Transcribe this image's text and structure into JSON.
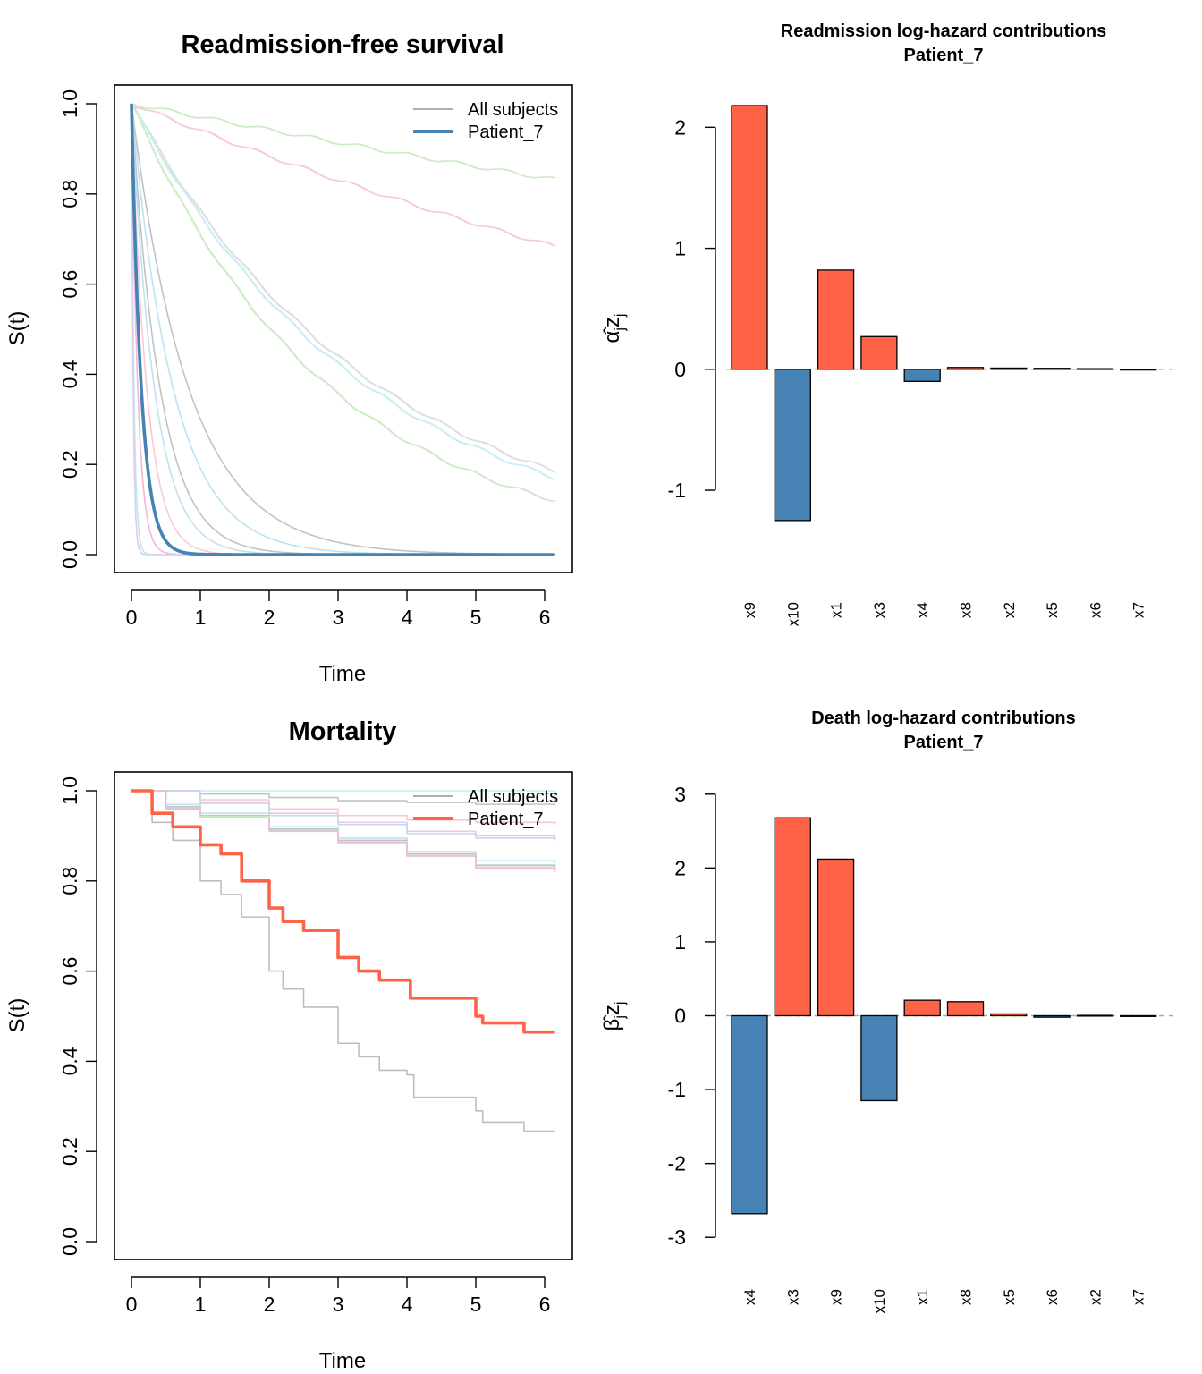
{
  "colors": {
    "all_subjects_line": "#a3a3a3",
    "patient_readmission": "#4682b4",
    "patient_mortality": "#ff6347",
    "bar_positive": "#ff6347",
    "bar_negative": "#4682b4",
    "zero_line": "#a9a9a9"
  },
  "chart_data": [
    {
      "id": "readmission_survival",
      "type": "line",
      "title": "Readmission-free survival",
      "xlabel": "Time",
      "ylabel": "S(t)",
      "xlim": [
        0,
        6.2
      ],
      "ylim": [
        0,
        1.0
      ],
      "xticks": [
        0,
        1,
        2,
        3,
        4,
        5,
        6
      ],
      "yticks": [
        0.0,
        0.2,
        0.4,
        0.6,
        0.8,
        1.0
      ],
      "legend": {
        "position": "top-right",
        "entries": [
          {
            "label": "All subjects",
            "color": "#a3a3a3"
          },
          {
            "label": "Patient_7",
            "color": "#4682b4"
          }
        ]
      },
      "series": [
        {
          "name": "All subjects",
          "color": "#ccebc5",
          "kind": "exp",
          "rate": 0.03,
          "end": 6.15,
          "stepped": true
        },
        {
          "name": "All subjects",
          "color": "#f9c9d3",
          "kind": "exp",
          "rate": 0.062,
          "end": 6.15,
          "stepped": true
        },
        {
          "name": "All subjects",
          "color": "#dddddd",
          "kind": "exp",
          "rate": 0.275,
          "end": 6.15,
          "stepped": true
        },
        {
          "name": "All subjects",
          "color": "#c6ecf5",
          "kind": "exp",
          "rate": 0.288,
          "end": 6.15,
          "stepped": true
        },
        {
          "name": "All subjects",
          "color": "#ccebc5",
          "kind": "exp",
          "rate": 0.345,
          "end": 6.15,
          "stepped": true
        },
        {
          "name": "All subjects",
          "color": "#c2c2c2",
          "kind": "exp",
          "rate": 1.2,
          "end": 6.15
        },
        {
          "name": "All subjects",
          "color": "#bde2f2",
          "kind": "exp",
          "rate": 1.65,
          "end": 6.15
        },
        {
          "name": "All subjects",
          "color": "#c2c2c2",
          "kind": "exp",
          "rate": 2.4,
          "end": 6.15
        },
        {
          "name": "All subjects",
          "color": "#bde2f2",
          "kind": "exp",
          "rate": 3.0,
          "end": 6.15
        },
        {
          "name": "All subjects",
          "color": "#f9c9d3",
          "kind": "exp",
          "rate": 4.5,
          "end": 6.15
        },
        {
          "name": "All subjects",
          "color": "#f0b8d8",
          "kind": "exp",
          "rate": 11.0,
          "end": 6.15
        },
        {
          "name": "All subjects",
          "color": "#bfe8e8",
          "kind": "exp",
          "rate": 28.0,
          "end": 6.15
        },
        {
          "name": "All subjects",
          "color": "#d8d0f0",
          "kind": "exp",
          "rate": 40.0,
          "end": 6.15
        },
        {
          "name": "Patient_7",
          "color": "#4682b4",
          "kind": "exp",
          "rate": 7.0,
          "end": 6.15,
          "width": 3.6
        }
      ]
    },
    {
      "id": "readmission_contributions",
      "type": "bar",
      "title": "Readmission log-hazard contributions",
      "subtitle": "Patient_7",
      "ylabel": "α̂ⱼzⱼ",
      "ylabel_main": "α̂",
      "ylabel_sub1": "j",
      "ylabel_z": "z",
      "ylabel_sub2": "j",
      "categories": [
        "x9",
        "x10",
        "x1",
        "x3",
        "x4",
        "x8",
        "x2",
        "x5",
        "x6",
        "x7"
      ],
      "values": [
        2.18,
        -1.25,
        0.82,
        0.27,
        -0.1,
        0.015,
        0.01,
        0.008,
        0.005,
        -0.004
      ],
      "ylim": [
        -1.68,
        2.35
      ],
      "yticks": [
        -1,
        0,
        1,
        2
      ]
    },
    {
      "id": "mortality",
      "type": "line",
      "title": "Mortality",
      "xlabel": "Time",
      "ylabel": "S(t)",
      "xlim": [
        0,
        6.2
      ],
      "ylim": [
        0,
        1.0
      ],
      "xticks": [
        0,
        1,
        2,
        3,
        4,
        5,
        6
      ],
      "yticks": [
        0.0,
        0.2,
        0.4,
        0.6,
        0.8,
        1.0
      ],
      "legend": {
        "position": "top-right",
        "entries": [
          {
            "label": "All subjects",
            "color": "#a3a3a3"
          },
          {
            "label": "Patient_7",
            "color": "#ff6347"
          }
        ]
      },
      "series": [
        {
          "name": "All subjects",
          "color": "#c6ecf5",
          "kind": "points",
          "points": [
            [
              0,
              1.0
            ],
            [
              6.15,
              0.975
            ]
          ]
        },
        {
          "name": "All subjects",
          "color": "#c2c2c2",
          "kind": "points",
          "points": [
            [
              0,
              1.0
            ],
            [
              1.0,
              0.993
            ],
            [
              2.0,
              0.985
            ],
            [
              3.0,
              0.978
            ],
            [
              4.0,
              0.974
            ],
            [
              5.0,
              0.97
            ],
            [
              6.15,
              0.968
            ]
          ]
        },
        {
          "name": "All subjects",
          "color": "#f9c9d3",
          "kind": "points",
          "points": [
            [
              0,
              1.0
            ],
            [
              1.0,
              0.98
            ],
            [
              2.0,
              0.96
            ],
            [
              3.0,
              0.945
            ],
            [
              4.0,
              0.935
            ],
            [
              5.0,
              0.93
            ],
            [
              6.15,
              0.925
            ]
          ]
        },
        {
          "name": "All subjects",
          "color": "#e8c8e8",
          "kind": "points",
          "points": [
            [
              0,
              1.0
            ],
            [
              1.0,
              0.975
            ],
            [
              2.0,
              0.95
            ],
            [
              3.0,
              0.93
            ],
            [
              4.0,
              0.91
            ],
            [
              5.0,
              0.9
            ],
            [
              6.15,
              0.895
            ]
          ]
        },
        {
          "name": "All subjects",
          "color": "#c6d8ee",
          "kind": "points",
          "points": [
            [
              0,
              1.0
            ],
            [
              1.0,
              0.972
            ],
            [
              2.0,
              0.945
            ],
            [
              3.0,
              0.925
            ],
            [
              4.0,
              0.905
            ],
            [
              5.0,
              0.895
            ],
            [
              6.15,
              0.89
            ]
          ]
        },
        {
          "name": "All subjects",
          "color": "#bde2f2",
          "kind": "points",
          "points": [
            [
              0,
              1.0
            ],
            [
              0.5,
              0.97
            ],
            [
              1.0,
              0.95
            ],
            [
              2.0,
              0.92
            ],
            [
              3.0,
              0.895
            ],
            [
              4.0,
              0.865
            ],
            [
              5.0,
              0.845
            ],
            [
              6.15,
              0.84
            ]
          ]
        },
        {
          "name": "All subjects",
          "color": "#c2c2c2",
          "kind": "points",
          "points": [
            [
              0,
              1.0
            ],
            [
              0.5,
              0.965
            ],
            [
              1.0,
              0.945
            ],
            [
              2.0,
              0.915
            ],
            [
              3.0,
              0.89
            ],
            [
              4.0,
              0.86
            ],
            [
              5.0,
              0.835
            ],
            [
              6.15,
              0.83
            ]
          ]
        },
        {
          "name": "All subjects",
          "color": "#ccebc5",
          "kind": "points",
          "points": [
            [
              0,
              1.0
            ],
            [
              0.5,
              0.962
            ],
            [
              1.0,
              0.943
            ],
            [
              2.0,
              0.912
            ],
            [
              3.0,
              0.887
            ],
            [
              4.0,
              0.857
            ],
            [
              5.0,
              0.831
            ],
            [
              6.15,
              0.826
            ]
          ]
        },
        {
          "name": "All subjects",
          "color": "#f0b8d8",
          "kind": "points",
          "points": [
            [
              0,
              1.0
            ],
            [
              0.5,
              0.96
            ],
            [
              1.0,
              0.94
            ],
            [
              2.0,
              0.91
            ],
            [
              3.0,
              0.885
            ],
            [
              4.0,
              0.855
            ],
            [
              5.0,
              0.828
            ],
            [
              6.15,
              0.821
            ]
          ]
        },
        {
          "name": "All subjects",
          "color": "#bdbdbd",
          "kind": "points",
          "points": [
            [
              0,
              1.0
            ],
            [
              0.3,
              0.93
            ],
            [
              0.6,
              0.89
            ],
            [
              1.0,
              0.8
            ],
            [
              1.3,
              0.77
            ],
            [
              1.6,
              0.72
            ],
            [
              2.0,
              0.6
            ],
            [
              2.2,
              0.56
            ],
            [
              2.5,
              0.52
            ],
            [
              3.0,
              0.44
            ],
            [
              3.3,
              0.41
            ],
            [
              3.6,
              0.38
            ],
            [
              4.0,
              0.37
            ],
            [
              4.1,
              0.32
            ],
            [
              5.0,
              0.29
            ],
            [
              5.1,
              0.265
            ],
            [
              5.7,
              0.245
            ],
            [
              6.15,
              0.245
            ]
          ]
        },
        {
          "name": "Patient_7",
          "color": "#ff6347",
          "kind": "points",
          "width": 3.6,
          "points": [
            [
              0,
              1.0
            ],
            [
              0.3,
              0.95
            ],
            [
              0.6,
              0.92
            ],
            [
              1.0,
              0.88
            ],
            [
              1.3,
              0.86
            ],
            [
              1.6,
              0.8
            ],
            [
              2.0,
              0.74
            ],
            [
              2.2,
              0.71
            ],
            [
              2.5,
              0.69
            ],
            [
              3.0,
              0.63
            ],
            [
              3.3,
              0.6
            ],
            [
              3.6,
              0.58
            ],
            [
              4.0,
              0.58
            ],
            [
              4.05,
              0.54
            ],
            [
              4.5,
              0.54
            ],
            [
              5.0,
              0.5
            ],
            [
              5.1,
              0.485
            ],
            [
              5.7,
              0.465
            ],
            [
              6.15,
              0.465
            ]
          ]
        }
      ]
    },
    {
      "id": "death_contributions",
      "type": "bar",
      "title": "Death log-hazard contributions",
      "subtitle": "Patient_7",
      "ylabel": "β̂ⱼzⱼ",
      "ylabel_main": "β̂",
      "ylabel_sub1": "j",
      "ylabel_z": "z",
      "ylabel_sub2": "j",
      "categories": [
        "x4",
        "x3",
        "x9",
        "x10",
        "x1",
        "x8",
        "x5",
        "x6",
        "x2",
        "x7"
      ],
      "values": [
        -2.68,
        2.68,
        2.12,
        -1.15,
        0.21,
        0.19,
        0.025,
        -0.02,
        0.005,
        -0.004
      ],
      "ylim": [
        -3.3,
        3.3
      ],
      "yticks": [
        -3,
        -2,
        -1,
        0,
        1,
        2,
        3
      ]
    }
  ]
}
